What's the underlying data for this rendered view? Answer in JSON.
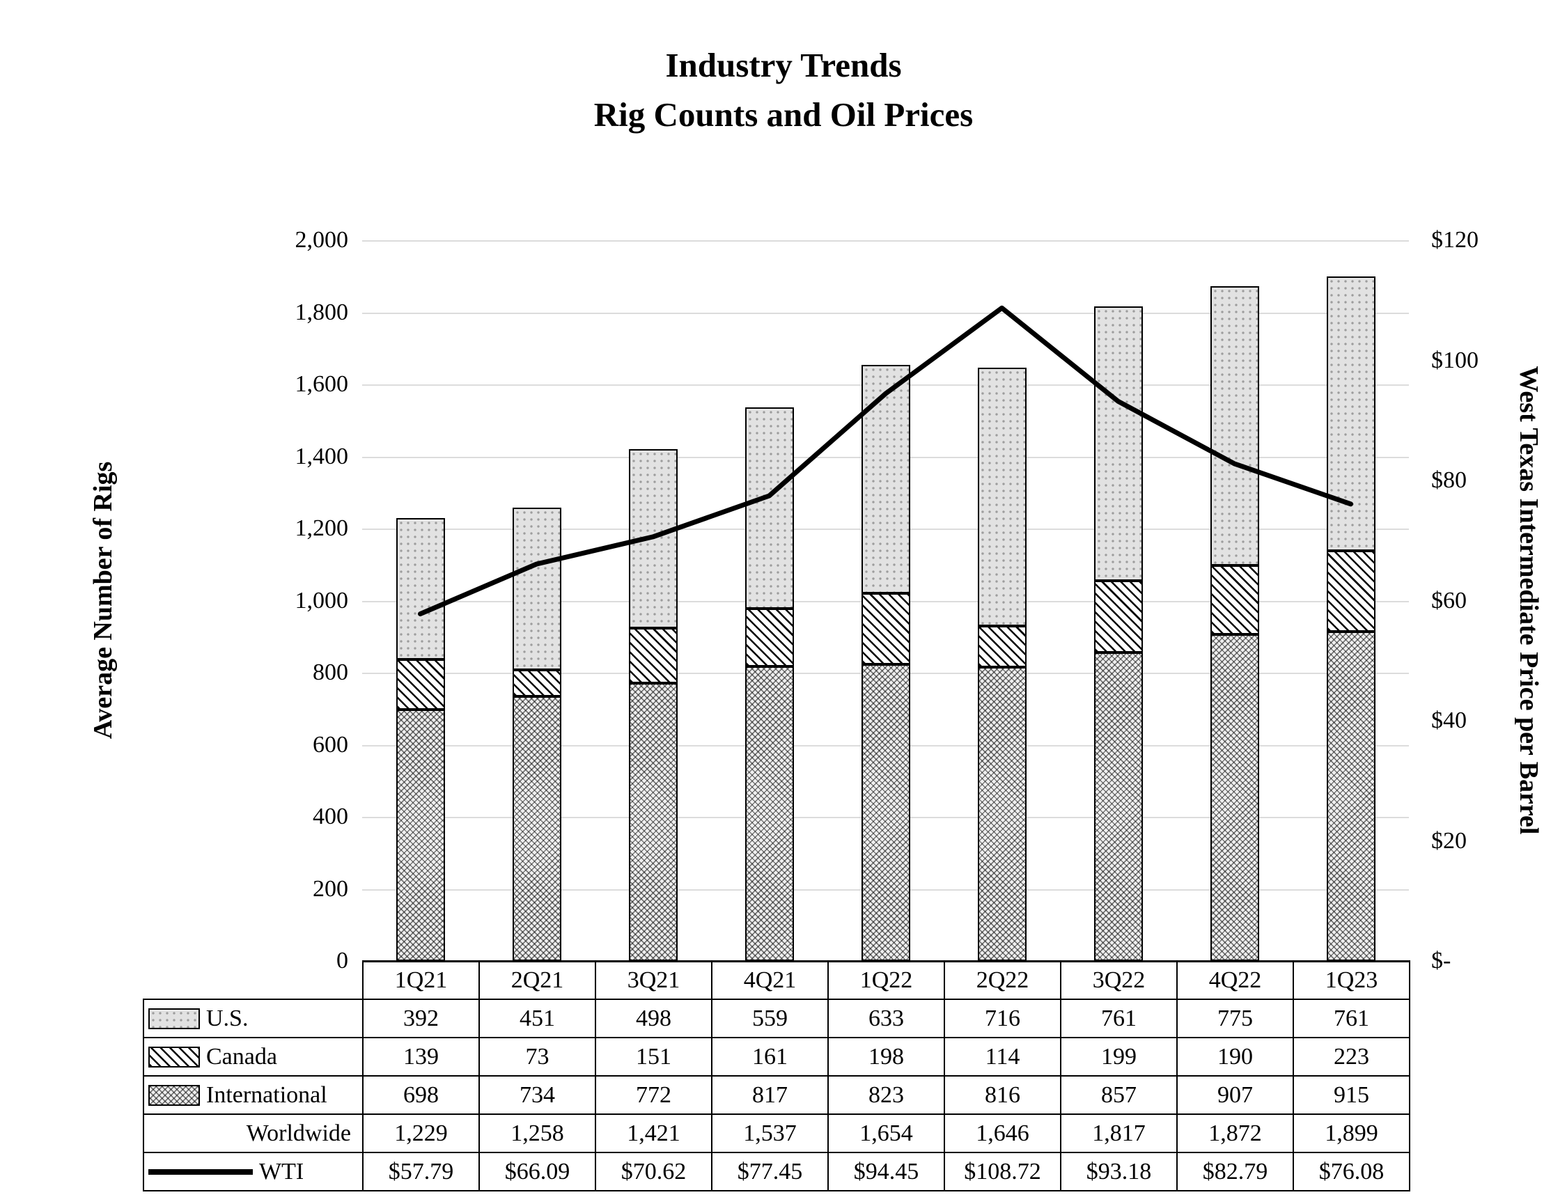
{
  "chart_data": {
    "type": "bar",
    "title": "Industry Trends",
    "subtitle": "Rig Counts and Oil Prices",
    "categories": [
      "1Q21",
      "2Q21",
      "3Q21",
      "4Q21",
      "1Q22",
      "2Q22",
      "3Q22",
      "4Q22",
      "1Q23"
    ],
    "series": [
      {
        "name": "U.S.",
        "type": "bar",
        "values": [
          392,
          451,
          498,
          559,
          633,
          716,
          761,
          775,
          761
        ]
      },
      {
        "name": "Canada",
        "type": "bar",
        "values": [
          139,
          73,
          151,
          161,
          198,
          114,
          199,
          190,
          223
        ]
      },
      {
        "name": "International",
        "type": "bar",
        "values": [
          698,
          734,
          772,
          817,
          823,
          816,
          857,
          907,
          915
        ]
      },
      {
        "name": "Worldwide",
        "type": "total",
        "values": [
          1229,
          1258,
          1421,
          1537,
          1654,
          1646,
          1817,
          1872,
          1899
        ]
      },
      {
        "name": "WTI",
        "type": "line",
        "values": [
          57.79,
          66.09,
          70.62,
          77.45,
          94.45,
          108.72,
          93.18,
          82.79,
          76.08
        ]
      }
    ],
    "stack_order": [
      "International",
      "Canada",
      "U.S."
    ],
    "left_axis": {
      "label": "Average Number of Rigs",
      "min": 0,
      "max": 2000,
      "step": 200
    },
    "right_axis": {
      "label": "West Texas Intermediate Price per Barrel",
      "min": 0,
      "max": 120,
      "step": 20,
      "tick_prefix": "$",
      "zero_label": "$-"
    },
    "colors": {
      "line": "#000000",
      "border": "#000000",
      "gridline": "#dcdcdc"
    },
    "legend_position": "table-left",
    "grid": true
  }
}
